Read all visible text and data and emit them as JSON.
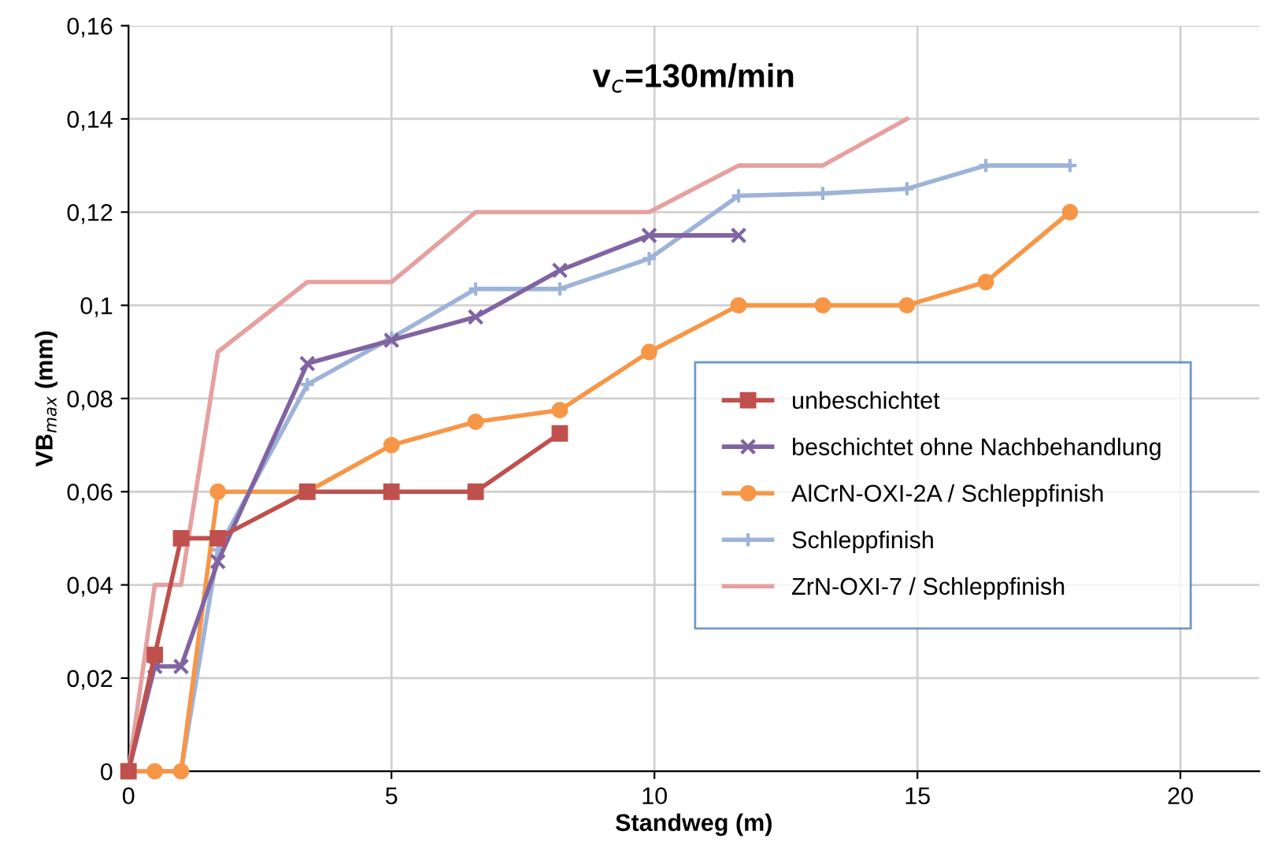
{
  "chart_data": {
    "type": "line",
    "title": "v$_{c}$=130m/min",
    "xlabel": "Standweg (m)",
    "ylabel": "VB$_{max}$ (mm)",
    "xlim": [
      0,
      21.5
    ],
    "xticks": [
      0,
      5,
      10,
      15,
      20
    ],
    "ylim": [
      0,
      0.16
    ],
    "yticks": [
      {
        "value": 0,
        "label": "0"
      },
      {
        "value": 0.02,
        "label": "0,02"
      },
      {
        "value": 0.04,
        "label": "0,04"
      },
      {
        "value": 0.06,
        "label": "0,06"
      },
      {
        "value": 0.08,
        "label": "0,08"
      },
      {
        "value": 0.1,
        "label": "0,1"
      },
      {
        "value": 0.12,
        "label": "0,12"
      },
      {
        "value": 0.14,
        "label": "0,14"
      },
      {
        "value": 0.16,
        "label": "0,16"
      }
    ],
    "grid": true,
    "legend": "right",
    "series": [
      {
        "name": "unbeschichtet",
        "color": "#c0504d",
        "marker": "square",
        "x": [
          0,
          0.5,
          1,
          1.7,
          3.4,
          5,
          6.6,
          8.2
        ],
        "values": [
          0,
          0.025,
          0.05,
          0.05,
          0.06,
          0.06,
          0.06,
          0.0725
        ]
      },
      {
        "name": "beschichtet ohne Nachbehandlung",
        "color": "#8064a2",
        "marker": "cross",
        "x": [
          0,
          0.5,
          1,
          1.7,
          3.4,
          5,
          6.6,
          8.2,
          9.9,
          11.6
        ],
        "values": [
          0,
          0.0225,
          0.0225,
          0.045,
          0.0875,
          0.0925,
          0.0975,
          0.1075,
          0.115,
          0.115
        ]
      },
      {
        "name": "AlCrN-OXI-2A / Schleppfinish",
        "color": "#f79646",
        "marker": "circle",
        "x": [
          0,
          0.5,
          1,
          1.7,
          3.4,
          5,
          6.6,
          8.2,
          9.9,
          11.6,
          13.2,
          14.8,
          16.3,
          17.9
        ],
        "values": [
          0,
          0,
          0,
          0.06,
          0.06,
          0.07,
          0.075,
          0.0775,
          0.09,
          0.1,
          0.1,
          0.1,
          0.105,
          0.12
        ]
      },
      {
        "name": "Schleppfinish",
        "color": "#9db3d9",
        "marker": "plus",
        "x": [
          0,
          0.5,
          1,
          1.7,
          3.4,
          5,
          6.6,
          8.2,
          9.9,
          11.6,
          13.2,
          14.8,
          16.3,
          17.9
        ],
        "values": [
          0,
          0,
          0,
          0.0475,
          0.083,
          0.093,
          0.1035,
          0.1035,
          0.11,
          0.1235,
          0.124,
          0.125,
          0.13,
          0.13
        ]
      },
      {
        "name": "ZrN-OXI-7 / Schleppfinish",
        "color": "#e6a0a0",
        "marker": "none",
        "x": [
          0,
          0.5,
          1,
          1.7,
          3.4,
          5,
          6.6,
          8.2,
          9.9,
          11.6,
          13.2,
          14.8
        ],
        "values": [
          0,
          0.04,
          0.04,
          0.09,
          0.105,
          0.105,
          0.12,
          0.12,
          0.12,
          0.13,
          0.13,
          0.14
        ]
      }
    ]
  }
}
